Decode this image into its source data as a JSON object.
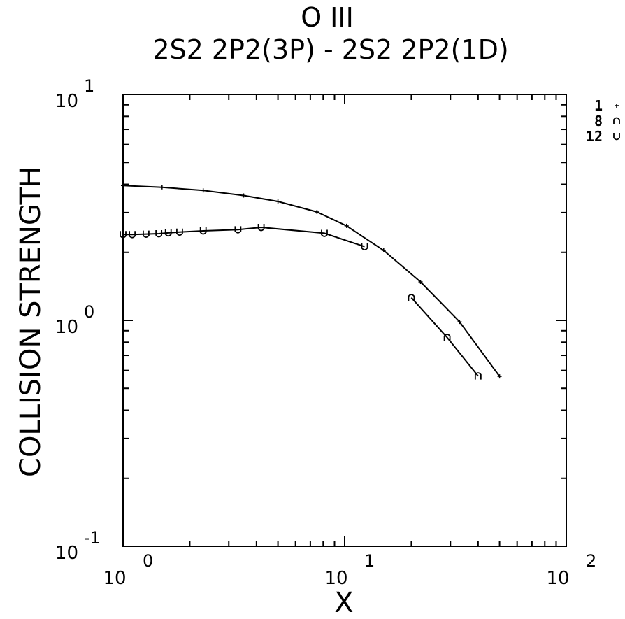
{
  "chart_data": {
    "type": "line",
    "title": "O III",
    "subtitle": "2S2 2P2(3P) - 2S2 2P2(1D)",
    "xlabel": "X",
    "ylabel": "COLLISION STRENGTH",
    "xscale": "log",
    "yscale": "log",
    "xlim": [
      1,
      100
    ],
    "ylim": [
      0.1,
      10
    ],
    "x_ticks": [
      {
        "base": "10",
        "exp": "0"
      },
      {
        "base": "10",
        "exp": "1"
      },
      {
        "base": "10",
        "exp": "2"
      }
    ],
    "y_ticks": [
      {
        "base": "10",
        "exp": "-1"
      },
      {
        "base": "10",
        "exp": "0"
      },
      {
        "base": "10",
        "exp": "1"
      }
    ],
    "legend_position": "top-right",
    "series": [
      {
        "name": "1",
        "marker": "+",
        "points": [
          [
            1.0,
            3.95
          ],
          [
            1.5,
            3.88
          ],
          [
            2.3,
            3.76
          ],
          [
            3.5,
            3.57
          ],
          [
            5.0,
            3.36
          ],
          [
            7.5,
            3.02
          ],
          [
            10.2,
            2.62
          ],
          [
            15.0,
            2.04
          ],
          [
            22.0,
            1.48
          ],
          [
            33.0,
            0.985
          ],
          [
            50.0,
            0.565
          ]
        ]
      },
      {
        "name": "8",
        "marker": "n",
        "points": [
          [
            20.0,
            1.26
          ],
          [
            29.0,
            0.84
          ],
          [
            40.0,
            0.567
          ]
        ]
      },
      {
        "name": "12",
        "marker": "U",
        "points": [
          [
            1.0,
            2.4
          ],
          [
            1.1,
            2.4
          ],
          [
            1.27,
            2.41
          ],
          [
            1.45,
            2.42
          ],
          [
            1.6,
            2.44
          ],
          [
            1.8,
            2.46
          ],
          [
            2.3,
            2.49
          ],
          [
            3.3,
            2.52
          ],
          [
            4.2,
            2.58
          ],
          [
            8.1,
            2.43
          ],
          [
            12.3,
            2.12
          ]
        ]
      }
    ]
  }
}
